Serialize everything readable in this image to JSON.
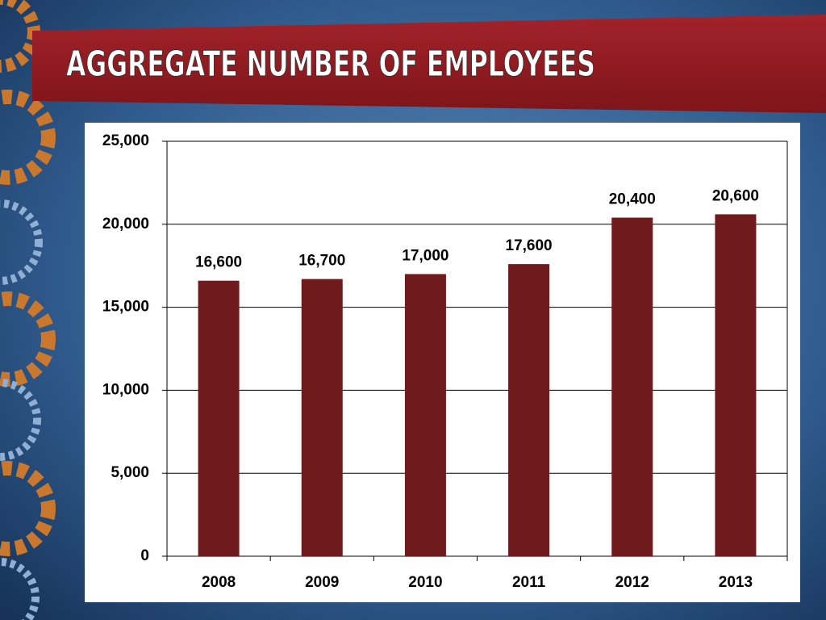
{
  "chart_data": {
    "type": "bar",
    "title": "AGGREGATE NUMBER OF EMPLOYEES",
    "categories": [
      "2008",
      "2009",
      "2010",
      "2011",
      "2012",
      "2013"
    ],
    "values": [
      16600,
      16700,
      17000,
      17600,
      20400,
      20600
    ],
    "value_labels": [
      "16,600",
      "16,700",
      "17,000",
      "17,600",
      "20,400",
      "20,600"
    ],
    "color": "#6f1a1d",
    "ylim": [
      0,
      25000
    ],
    "yticks": [
      0,
      {
        "value": 5000,
        "label": "5,000"
      },
      {
        "value": 10000,
        "label": "10,000"
      },
      {
        "value": 15000,
        "label": "15,000"
      },
      {
        "value": 20000,
        "label": "20,000"
      },
      {
        "value": 25000,
        "label": "25,000"
      }
    ],
    "grid": true
  }
}
